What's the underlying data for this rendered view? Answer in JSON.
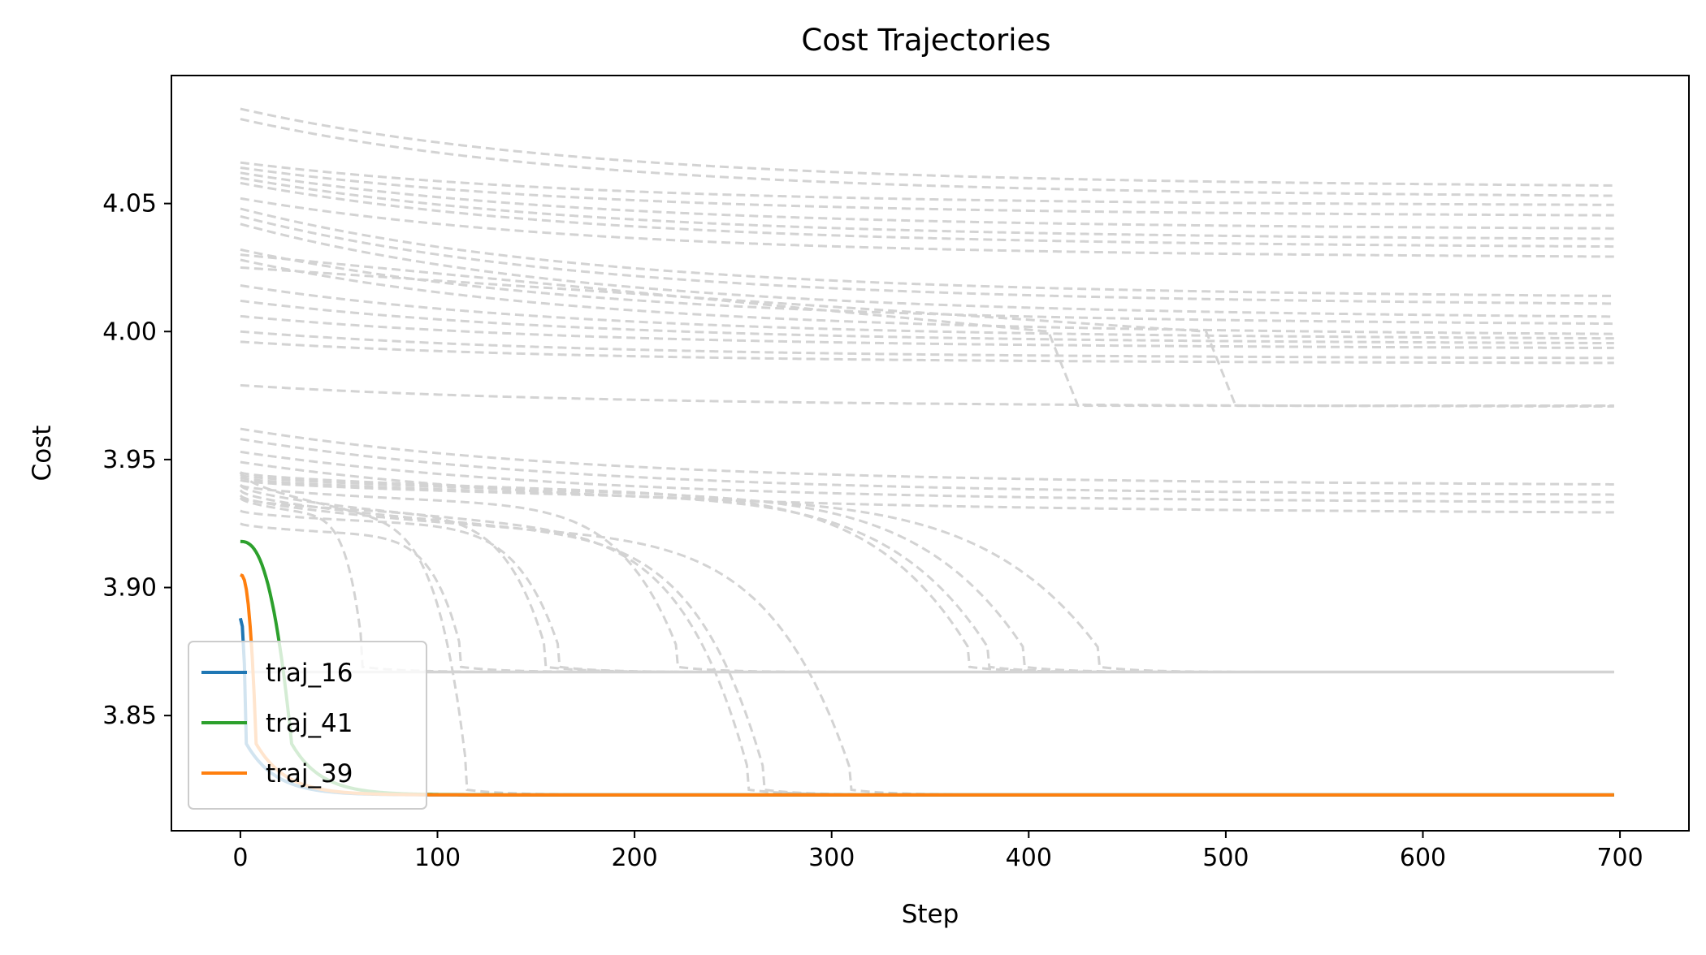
{
  "chart_data": {
    "type": "line",
    "title": "Cost Trajectories",
    "xlabel": "Step",
    "ylabel": "Cost",
    "xlim": [
      -35,
      735
    ],
    "ylim": [
      3.805,
      4.1
    ],
    "xticks": [
      0,
      100,
      200,
      300,
      400,
      500,
      600,
      700
    ],
    "yticks": [
      3.85,
      3.9,
      3.95,
      4.0,
      4.05
    ],
    "ytick_labels": [
      "3.85",
      "3.90",
      "3.95",
      "4.00",
      "4.05"
    ],
    "grid": false,
    "legend_position": "lower-left",
    "background_color": "#d3d3d3",
    "background_trajectories": {
      "style": "dashed",
      "color": "#d3d3d3",
      "plateau": [
        {
          "start": 4.087,
          "end": 4.058
        },
        {
          "start": 4.083,
          "end": 4.054
        },
        {
          "start": 4.066,
          "end": 4.05
        },
        {
          "start": 4.064,
          "end": 4.046
        },
        {
          "start": 4.062,
          "end": 4.041
        },
        {
          "start": 4.06,
          "end": 4.037
        },
        {
          "start": 4.058,
          "end": 4.034
        },
        {
          "start": 4.052,
          "end": 4.03
        },
        {
          "start": 4.048,
          "end": 4.015
        },
        {
          "start": 4.045,
          "end": 4.012
        },
        {
          "start": 4.042,
          "end": 4.007
        },
        {
          "start": 4.032,
          "end": 4.004
        },
        {
          "start": 4.028,
          "end": 4.0
        },
        {
          "start": 4.018,
          "end": 3.998
        },
        {
          "start": 4.012,
          "end": 3.996
        },
        {
          "start": 4.006,
          "end": 3.994
        },
        {
          "start": 4.0,
          "end": 3.99
        },
        {
          "start": 3.996,
          "end": 3.988
        },
        {
          "start": 3.979,
          "end": 3.971
        },
        {
          "start": 3.962,
          "end": 3.941
        },
        {
          "start": 3.958,
          "end": 3.937
        },
        {
          "start": 3.953,
          "end": 3.934
        },
        {
          "start": 3.949,
          "end": 3.93
        }
      ],
      "drop_to_3_867": [
        {
          "start": 3.935,
          "drop_step": 62
        },
        {
          "start": 3.925,
          "drop_step": 112
        },
        {
          "start": 3.935,
          "drop_step": 155
        },
        {
          "start": 3.93,
          "drop_step": 162
        },
        {
          "start": 3.94,
          "drop_step": 222
        },
        {
          "start": 3.945,
          "drop_step": 370
        },
        {
          "start": 3.943,
          "drop_step": 380
        },
        {
          "start": 3.944,
          "drop_step": 398
        },
        {
          "start": 3.942,
          "drop_step": 436
        }
      ],
      "drop_to_3_820": [
        {
          "start": 3.945,
          "drop_step": 115
        },
        {
          "start": 3.94,
          "drop_step": 258
        },
        {
          "start": 3.938,
          "drop_step": 266
        },
        {
          "start": 3.936,
          "drop_step": 310
        }
      ],
      "knee_to_3_971": [
        {
          "start": 4.03,
          "knee_step": 410
        },
        {
          "start": 4.025,
          "knee_step": 490
        }
      ],
      "final_values": [
        3.867,
        3.819
      ]
    },
    "series": [
      {
        "name": "traj_16",
        "color": "#1f77b4",
        "start": 3.888,
        "end": 3.819
      },
      {
        "name": "traj_41",
        "color": "#2ca02c",
        "start": 3.918,
        "end": 3.819
      },
      {
        "name": "traj_39",
        "color": "#ff7f0e",
        "start": 3.905,
        "end": 3.819
      }
    ],
    "x_range": [
      0,
      697
    ]
  }
}
